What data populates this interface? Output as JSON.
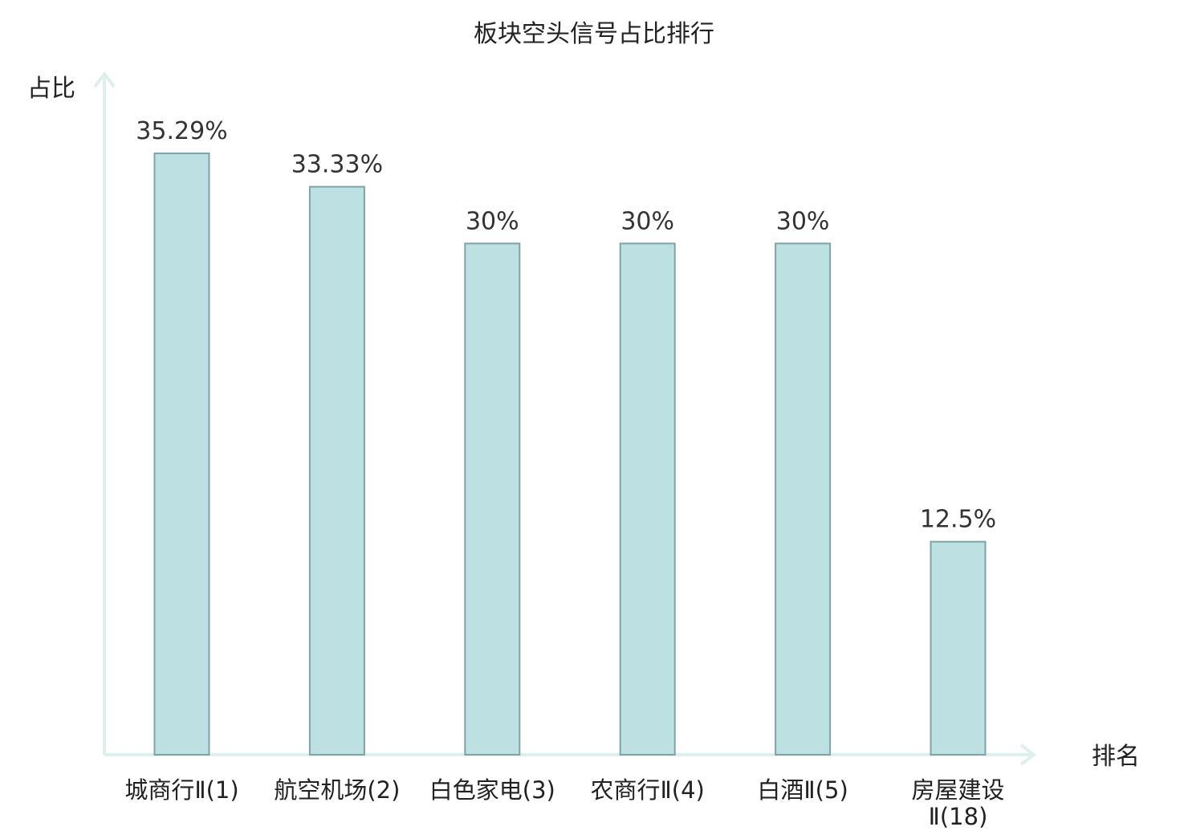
{
  "chart_data": {
    "type": "bar",
    "title": "板块空头信号占比排行",
    "ylabel": "占比",
    "xlabel": "排名",
    "ylim": [
      0,
      40
    ],
    "grid": false,
    "categories": [
      "城商行Ⅱ(1)",
      "航空机场(2)",
      "白色家电(3)",
      "农商行Ⅱ(4)",
      "白酒Ⅱ(5)",
      "房屋建设Ⅱ(18)"
    ],
    "category_lines": [
      [
        "城商行Ⅱ(1)"
      ],
      [
        "航空机场(2)"
      ],
      [
        "白色家电(3)"
      ],
      [
        "农商行Ⅱ(4)"
      ],
      [
        "白酒Ⅱ(5)"
      ],
      [
        "房屋建设",
        "Ⅱ(18)"
      ]
    ],
    "values": [
      35.29,
      33.33,
      30,
      30,
      30,
      12.5
    ],
    "value_labels": [
      "35.29%",
      "33.33%",
      "30%",
      "30%",
      "30%",
      "12.5%"
    ],
    "highlighted_index": 5,
    "colors": {
      "bar_fill": "#bde0e3",
      "bar_stroke": "#7fa3a6",
      "axis": "#ddf0ee",
      "highlight_text": "#e8211f",
      "text": "#222222"
    }
  }
}
